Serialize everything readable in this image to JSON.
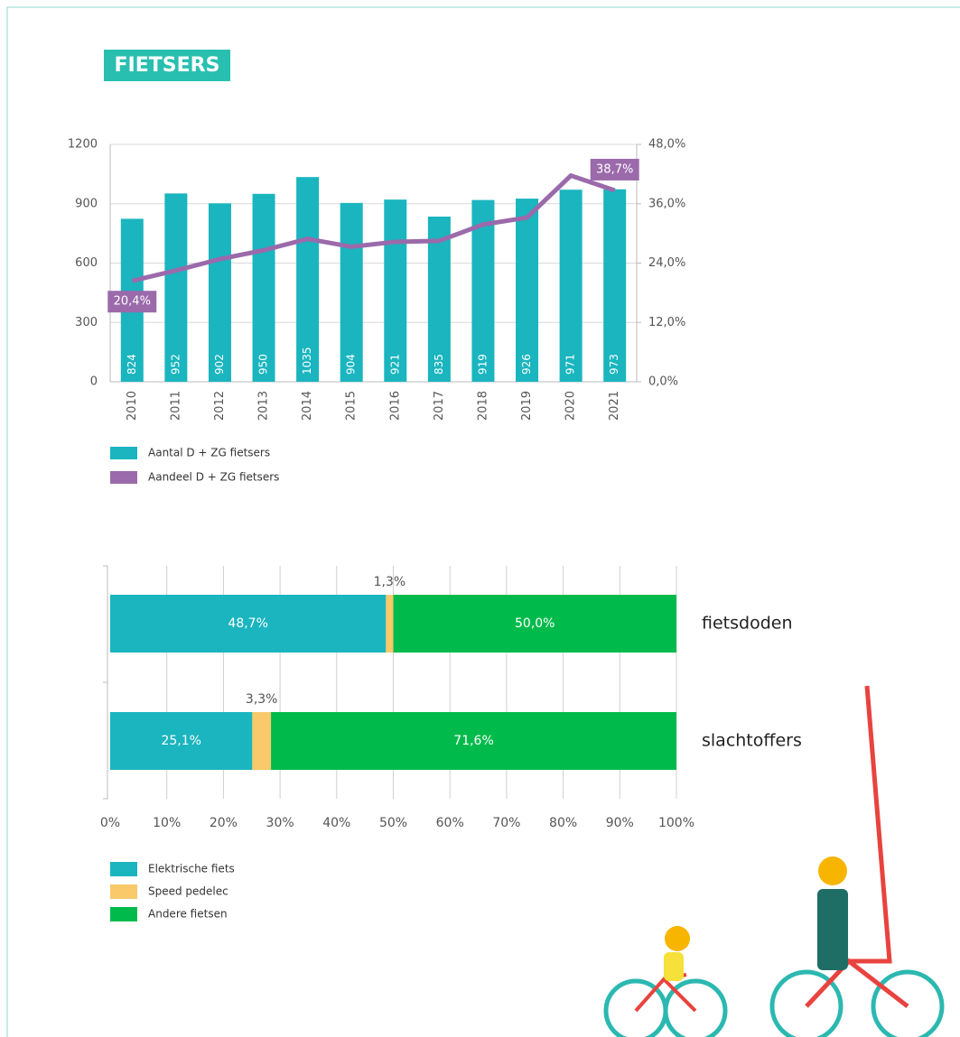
{
  "header": {
    "title": "FIETSERS"
  },
  "chart_data": [
    {
      "type": "combo",
      "categories": [
        "2010",
        "2011",
        "2012",
        "2013",
        "2014",
        "2015",
        "2016",
        "2017",
        "2018",
        "2019",
        "2020",
        "2021"
      ],
      "series": [
        {
          "name": "Aantal D + ZG fietsers",
          "type": "bar",
          "color": "#1ab5bf",
          "values": [
            824,
            952,
            902,
            950,
            1035,
            904,
            921,
            835,
            919,
            926,
            971,
            973
          ]
        },
        {
          "name": "Aandeel D + ZG fietsers",
          "type": "line",
          "axis": "y2",
          "color": "#9b6aab",
          "values": [
            20.4,
            22.5,
            24.8,
            26.6,
            28.9,
            27.3,
            28.3,
            28.5,
            31.8,
            33.2,
            41.7,
            38.7
          ],
          "value_labels": [
            "20,4%",
            null,
            null,
            null,
            null,
            null,
            null,
            null,
            null,
            null,
            null,
            "38,7%"
          ]
        }
      ],
      "ylim": [
        0,
        1200
      ],
      "yticks": [
        0,
        300,
        600,
        900,
        1200
      ],
      "y2lim": [
        0,
        48
      ],
      "y2ticks": [
        {
          "value": 0,
          "label": "0,0%"
        },
        {
          "value": 12,
          "label": "12,0%"
        },
        {
          "value": 24,
          "label": "24,0%"
        },
        {
          "value": 36,
          "label": "36,0%"
        },
        {
          "value": 48,
          "label": "48,0%"
        }
      ],
      "grid": true
    },
    {
      "type": "barh",
      "stacked": true,
      "categories": [
        "fietsdoden",
        "slachtoffers"
      ],
      "series": [
        {
          "name": "Elektrische fiets",
          "color": "#1ab5bf",
          "values": [
            48.7,
            25.1
          ],
          "value_labels": [
            "48,7%",
            "25,1%"
          ]
        },
        {
          "name": "Speed pedelec",
          "color": "#f9c96a",
          "values": [
            1.3,
            3.3
          ],
          "value_labels": [
            "1,3%",
            "3,3%"
          ]
        },
        {
          "name": "Andere fietsen",
          "color": "#00bb4c",
          "values": [
            50.0,
            71.6
          ],
          "value_labels": [
            "50,0%",
            "71,6%"
          ]
        }
      ],
      "xlim": [
        0,
        100
      ],
      "xticks": [
        {
          "value": 0,
          "label": "0%"
        },
        {
          "value": 10,
          "label": "10%"
        },
        {
          "value": 20,
          "label": "20%"
        },
        {
          "value": 30,
          "label": "30%"
        },
        {
          "value": 40,
          "label": "40%"
        },
        {
          "value": 50,
          "label": "50%"
        },
        {
          "value": 60,
          "label": "60%"
        },
        {
          "value": 70,
          "label": "70%"
        },
        {
          "value": 80,
          "label": "80%"
        },
        {
          "value": 90,
          "label": "90%"
        },
        {
          "value": 100,
          "label": "100%"
        }
      ],
      "grid": true
    }
  ]
}
